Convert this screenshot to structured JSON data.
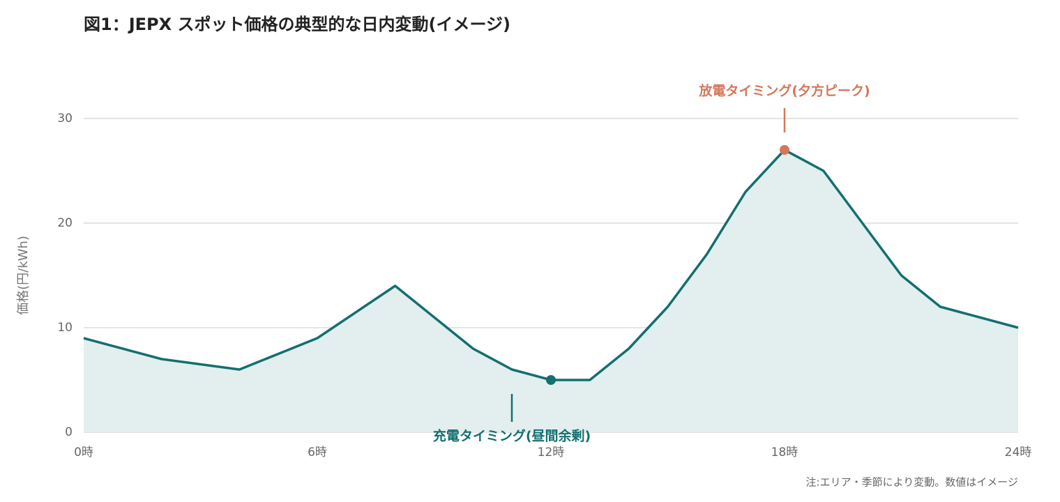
{
  "chart_data": {
    "type": "line",
    "title": "図1：JEPX スポット価格の典型的な日内変動(イメージ)",
    "y_label": "価格(円/kWh)",
    "note": "注:エリア・季節により変動。数値はイメージ",
    "x": [
      0,
      2,
      4,
      6,
      8,
      10,
      11,
      12,
      13,
      14,
      15,
      16,
      17,
      18,
      19,
      20,
      21,
      22,
      24
    ],
    "series": [
      {
        "color": "#136f70",
        "values": [
          9,
          7,
          6,
          9,
          14,
          8,
          6,
          5,
          5,
          8,
          12,
          17,
          23,
          27,
          25,
          20,
          15,
          12,
          10
        ]
      }
    ],
    "area_fill": "#e3eeee",
    "xlim": [
      0,
      24
    ],
    "xticks": [
      {
        "value": 0,
        "label": "0時"
      },
      {
        "value": 6,
        "label": "6時"
      },
      {
        "value": 12,
        "label": "12時"
      },
      {
        "value": 18,
        "label": "18時"
      },
      {
        "value": 24,
        "label": "24時"
      }
    ],
    "ylim": [
      0,
      30
    ],
    "yticks": [
      0,
      10,
      20,
      30
    ],
    "grid": true,
    "annotations": [
      {
        "text": "充電タイミング(昼間余剰)",
        "x": 12,
        "y": 5,
        "color": "#136f70",
        "position": "below"
      },
      {
        "text": "放電タイミング(夕方ピーク)",
        "x": 18,
        "y": 27,
        "color": "#d4775a",
        "position": "above"
      }
    ]
  }
}
